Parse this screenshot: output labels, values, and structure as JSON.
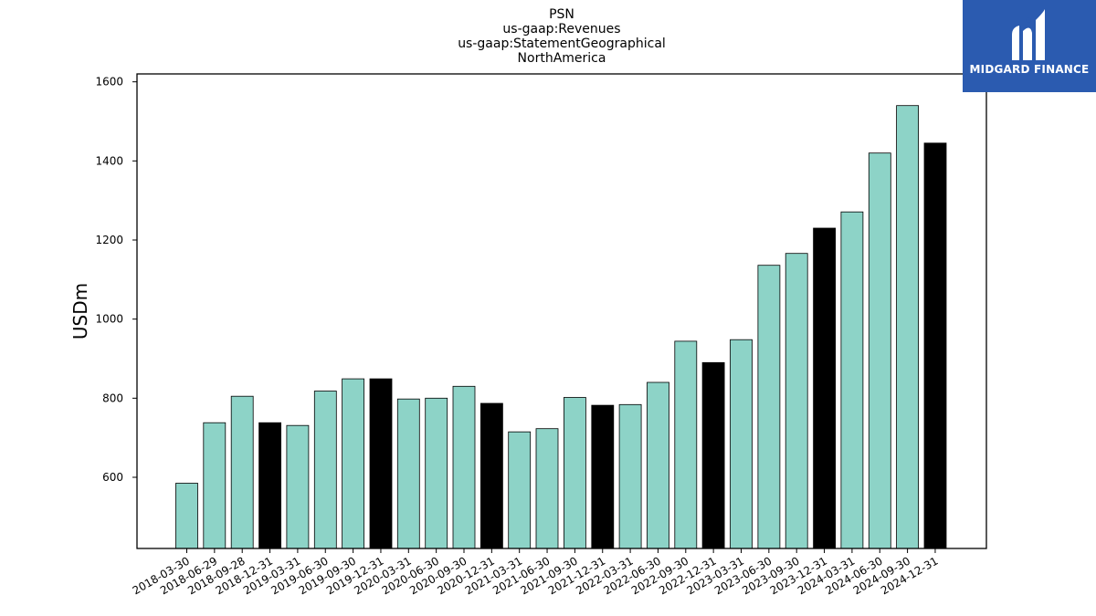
{
  "chart_data": {
    "type": "bar",
    "title_lines": [
      "PSN",
      "us-gaap:Revenues",
      "us-gaap:StatementGeographical",
      "NorthAmerica"
    ],
    "xlabel": "",
    "ylabel": "USDm",
    "ylim": [
      420,
      1620
    ],
    "yticks": [
      600,
      800,
      1000,
      1200,
      1400,
      1600
    ],
    "grid": false,
    "colors": {
      "quarter": "#8dd3c7",
      "year_end": "#000000",
      "edge": "#000000"
    },
    "categories": [
      "2018-03-30",
      "2018-06-29",
      "2018-09-28",
      "2018-12-31",
      "2019-03-31",
      "2019-06-30",
      "2019-09-30",
      "2019-12-31",
      "2020-03-31",
      "2020-06-30",
      "2020-09-30",
      "2020-12-31",
      "2021-03-31",
      "2021-06-30",
      "2021-09-30",
      "2021-12-31",
      "2022-03-31",
      "2022-06-30",
      "2022-09-30",
      "2022-12-31",
      "2023-03-31",
      "2023-06-30",
      "2023-09-30",
      "2023-12-31",
      "2024-03-31",
      "2024-06-30",
      "2024-09-30",
      "2024-12-31"
    ],
    "values": [
      585,
      738,
      805,
      738,
      731,
      818,
      849,
      849,
      798,
      800,
      830,
      787,
      715,
      723,
      802,
      782,
      784,
      840,
      944,
      890,
      948,
      1136,
      1166,
      1230,
      1271,
      1420,
      1540,
      1445
    ]
  },
  "logo": {
    "text": "MIDGARD FINANCE",
    "icon": "midgard-m-icon",
    "background": "#2b5bb0"
  }
}
